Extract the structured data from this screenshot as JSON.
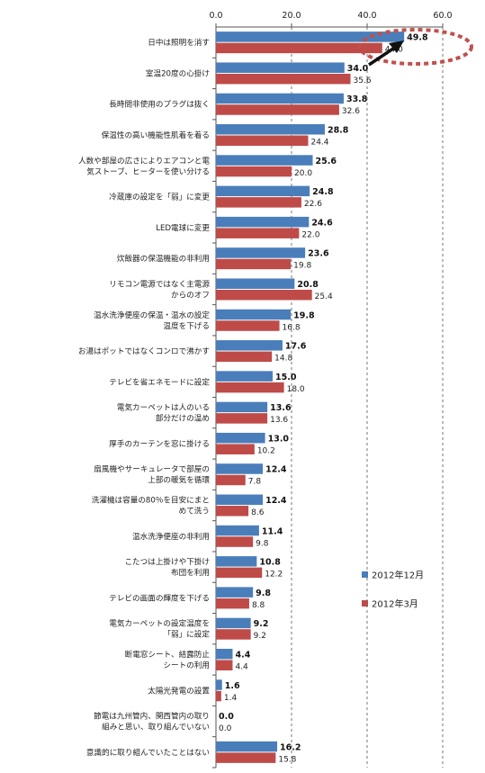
{
  "chart_data": {
    "type": "bar",
    "orientation": "horizontal",
    "xlim": [
      0,
      60
    ],
    "xticks": [
      "0.0",
      "20.0",
      "40.0",
      "60.0"
    ],
    "grid": "vertical dashed",
    "legend_position": "lower-right",
    "categories": [
      [
        "日中は照明を消す"
      ],
      [
        "室温20度の心掛け"
      ],
      [
        "長時間非使用のプラグは抜く"
      ],
      [
        "保温性の高い機能性肌着を着る"
      ],
      [
        "人数や部屋の広さによりエアコンと電",
        "気ストーブ、ヒーターを使い分ける"
      ],
      [
        "冷蔵庫の設定を「弱」に変更"
      ],
      [
        "LED電球に変更"
      ],
      [
        "炊飯器の保温機能の非利用"
      ],
      [
        "リモコン電源ではなく主電源",
        "からのオフ"
      ],
      [
        "温水洗浄便座の保温・温水の設定",
        "温度を下げる"
      ],
      [
        "お湯はポットではなくコンロで沸かす"
      ],
      [
        "テレビを省エネモードに設定"
      ],
      [
        "電気カーペットは人のいる",
        "部分だけの温め"
      ],
      [
        "厚手のカーテンを窓に掛ける"
      ],
      [
        "扇風機やサーキュレータで部屋の",
        "上部の暖気を循環"
      ],
      [
        "洗濯機は容量の80％を目安にまと",
        "めて洗う"
      ],
      [
        "温水洗浄便座の非利用"
      ],
      [
        "こたつは上掛けや下掛け",
        "布団を利用"
      ],
      [
        "テレビの画面の輝度を下げる"
      ],
      [
        "電気カーペットの設定温度を",
        "「弱」に設定"
      ],
      [
        "断電窓シート、結露防止",
        "シートの利用"
      ],
      [
        "太陽光発電の設置"
      ],
      [
        "節電は九州管内、関西管内の取り",
        "組みと思い、取り組んでいない"
      ],
      [
        "意識的に取り組んでいたことはない"
      ]
    ],
    "series": [
      {
        "name": "2012年12月",
        "color": "#4a7ebb",
        "values": [
          49.8,
          34.0,
          33.8,
          28.8,
          25.6,
          24.8,
          24.6,
          23.6,
          20.8,
          19.8,
          17.6,
          15.0,
          13.6,
          13.0,
          12.4,
          12.4,
          11.4,
          10.8,
          9.8,
          9.2,
          4.4,
          1.6,
          0.0,
          16.2
        ],
        "labels": [
          "49.8",
          "34.0",
          "33.8",
          "28.8",
          "25.6",
          "24.8",
          "24.6",
          "23.6",
          "20.8",
          "19.8",
          "17.6",
          "15.0",
          "13.6",
          "13.0",
          "12.4",
          "12.4",
          "11.4",
          "10.8",
          "9.8",
          "9.2",
          "4.4",
          "1.6",
          "0.0",
          "16.2"
        ]
      },
      {
        "name": "2012年3月",
        "color": "#be4b48",
        "values": [
          44.0,
          35.6,
          32.6,
          24.4,
          20.0,
          22.6,
          22.0,
          19.8,
          25.4,
          16.8,
          14.8,
          18.0,
          13.6,
          10.2,
          7.8,
          8.6,
          9.8,
          12.2,
          8.8,
          9.2,
          4.4,
          1.4,
          0.0,
          15.8
        ],
        "labels": [
          "44.0",
          "35.6",
          "32.6",
          "24.4",
          "20.0",
          "22.6",
          "22.0",
          "19.8",
          "25.4",
          "16.8",
          "14.8",
          "18.0",
          "13.6",
          "10.2",
          "7.8",
          "8.6",
          "9.8",
          "12.2",
          "8.8",
          "9.2",
          "4.4",
          "1.4",
          "0.0",
          "15.8"
        ]
      }
    ],
    "annotation": {
      "highlight": "red dashed ellipse with black arrow",
      "target_category_index": 0
    }
  }
}
